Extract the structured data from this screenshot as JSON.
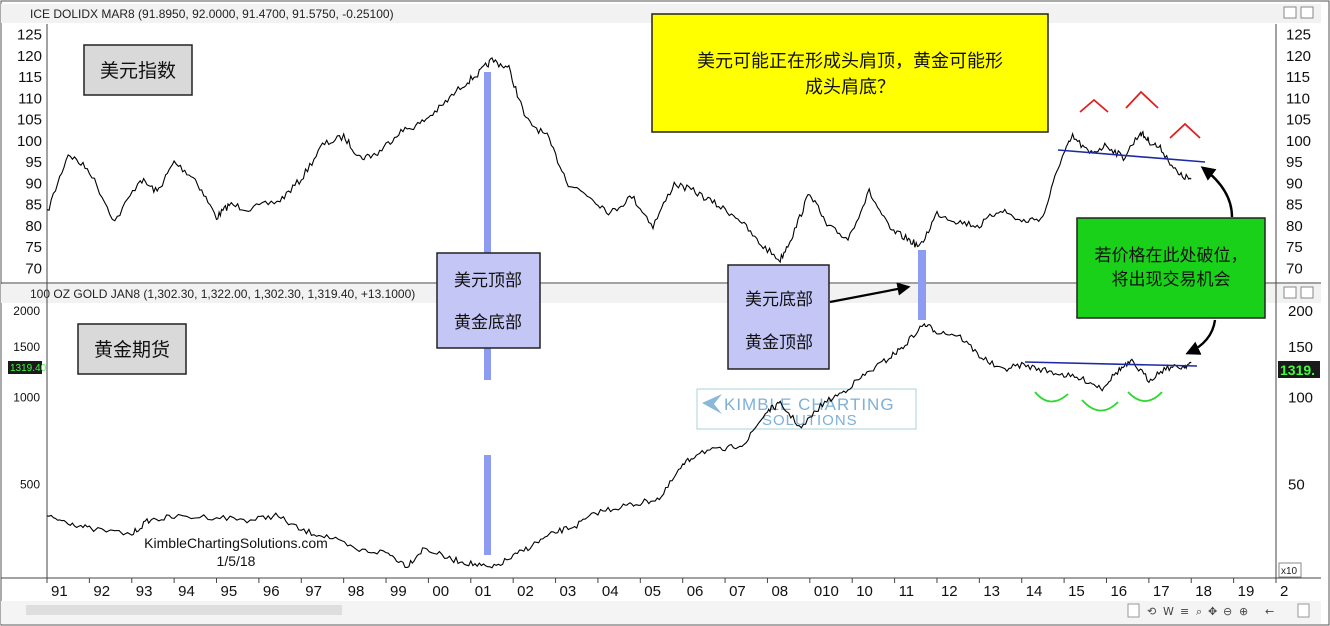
{
  "top_panel": {
    "header": "ICE DOLIDX MAR8 (91.8950, 92.0000, 91.4700, 91.5750, -0.25100)",
    "label": "美元指数",
    "y_ticks": [
      "125",
      "120",
      "115",
      "110",
      "105",
      "100",
      "95",
      "90",
      "85",
      "80",
      "75",
      "70"
    ]
  },
  "bottom_panel": {
    "header": "100 OZ GOLD JAN8 (1,302.30, 1,322.00, 1,302.30, 1,319.40, +13.1000)",
    "label": "黄金期货",
    "y_ticks_left": [
      "2000",
      "1500",
      "1000",
      "500"
    ],
    "y_ticks_right": [
      "200",
      "150",
      "100",
      "50"
    ],
    "price_tag_left": "1319.40",
    "price_tag_right": "1319."
  },
  "annotations": {
    "top_note_line1": "美元可能正在形成头肩顶，黄金可能形",
    "top_note_line2": "成头肩底？",
    "box1_line1": "美元顶部",
    "box1_line2": "黄金底部",
    "box2_line1": "美元底部",
    "box2_line2": "黄金顶部",
    "green_line1": "若价格在此处破位，",
    "green_line2": "将出现交易机会",
    "credit_line1": "KimbleChartingSolutions.com",
    "credit_line2": "1/5/18",
    "watermark_line1": "KIMBLE CHARTING",
    "watermark_line2": "SOLUTIONS"
  },
  "x_axis": {
    "labels": [
      "91",
      "92",
      "93",
      "94",
      "95",
      "96",
      "97",
      "98",
      "99",
      "00",
      "01",
      "02",
      "03",
      "04",
      "05",
      "06",
      "07",
      "08",
      "010",
      "10",
      "11",
      "12",
      "13",
      "14",
      "15",
      "16",
      "17",
      "18",
      "19",
      "2"
    ],
    "scale_label": "x10"
  },
  "colors": {
    "note_yellow": "#ffff00",
    "box_lavender": "#c4c6f6",
    "green_box": "#19d119",
    "marker_blue": "#8d9bf0",
    "neckline": "#1c2aa6",
    "head_shoulders_top": "#e02020",
    "head_shoulders_bottom": "#2ed82e",
    "price_tag_bg": "#1a1a1a",
    "price_tag_text": "#3dff3d"
  },
  "chart_data": [
    {
      "type": "line",
      "title": "ICE DOLIDX MAR8 (91.8950, 92.0000, 91.4700, 91.5750, -0.25100)",
      "xlabel": "",
      "ylabel": "",
      "ylim": [
        68,
        127
      ],
      "x_range": [
        1991.0,
        2020.0
      ],
      "grid": false,
      "series": [
        {
          "x": [
            1991.0,
            1991.5,
            1992.0,
            1992.6,
            1993.2,
            1993.6,
            1994.0,
            1994.5,
            1995.0,
            1995.3,
            1995.8,
            1996.5,
            1997.0,
            1997.5,
            1998.0,
            1998.4,
            1998.8,
            1999.3,
            1999.8,
            2000.3,
            2000.8,
            2001.2,
            2001.5,
            2001.9,
            2002.3,
            2002.8,
            2003.3,
            2003.8,
            2004.3,
            2004.8,
            2005.3,
            2005.8,
            2006.3,
            2006.8,
            2007.3,
            2007.8,
            2008.3,
            2008.6,
            2009.0,
            2009.4,
            2009.9,
            2010.4,
            2010.9,
            2011.3,
            2011.6,
            2012.0,
            2012.5,
            2013.0,
            2013.5,
            2014.0,
            2014.5,
            2014.9,
            2015.2,
            2015.6,
            2016.0,
            2016.4,
            2016.8,
            2017.0,
            2017.3,
            2017.7,
            2018.0
          ],
          "values": [
            83,
            97,
            93,
            81,
            91,
            88,
            95,
            91,
            82,
            85,
            84,
            86,
            91,
            99,
            101,
            96,
            97,
            102,
            104,
            108,
            113,
            116,
            119,
            117,
            105,
            101,
            90,
            87,
            83,
            87,
            80,
            90,
            88,
            85,
            82,
            76,
            72,
            78,
            88,
            80,
            77,
            88,
            79,
            77,
            75,
            83,
            81,
            80,
            84,
            81,
            82,
            95,
            101,
            97,
            99,
            96,
            102,
            100,
            98,
            92,
            91
          ]
        }
      ]
    },
    {
      "type": "line",
      "title": "100 OZ GOLD JAN8 (1,302.30, 1,322.00, 1,302.30, 1,319.40, +13.1000)",
      "xlabel": "",
      "ylabel": "",
      "ylim": [
        240,
        2100
      ],
      "y_scale": "log",
      "x_range": [
        1991.0,
        2020.0
      ],
      "grid": false,
      "series": [
        {
          "x": [
            1991.0,
            1991.5,
            1992.0,
            1993.0,
            1993.4,
            1994.0,
            1995.0,
            1995.8,
            1996.4,
            1997.0,
            1997.6,
            1998.3,
            1999.0,
            1999.5,
            1999.9,
            2000.5,
            2001.0,
            2001.5,
            2002.0,
            2002.5,
            2003.0,
            2003.5,
            2004.0,
            2004.6,
            2005.0,
            2005.5,
            2006.0,
            2006.4,
            2007.0,
            2007.5,
            2008.0,
            2008.3,
            2008.8,
            2009.3,
            2009.8,
            2010.3,
            2010.8,
            2011.2,
            2011.7,
            2012.0,
            2012.5,
            2013.0,
            2013.5,
            2014.0,
            2014.5,
            2015.0,
            2015.5,
            2015.9,
            2016.3,
            2016.6,
            2017.0,
            2017.4,
            2017.8,
            2018.0
          ],
          "values": [
            385,
            370,
            350,
            335,
            375,
            385,
            385,
            375,
            390,
            345,
            330,
            295,
            290,
            260,
            300,
            275,
            265,
            255,
            280,
            310,
            340,
            360,
            400,
            420,
            430,
            450,
            580,
            650,
            660,
            700,
            900,
            950,
            780,
            950,
            1050,
            1200,
            1350,
            1500,
            1800,
            1700,
            1650,
            1400,
            1250,
            1300,
            1250,
            1200,
            1150,
            1080,
            1250,
            1330,
            1150,
            1270,
            1280,
            1320
          ]
        }
      ]
    }
  ]
}
